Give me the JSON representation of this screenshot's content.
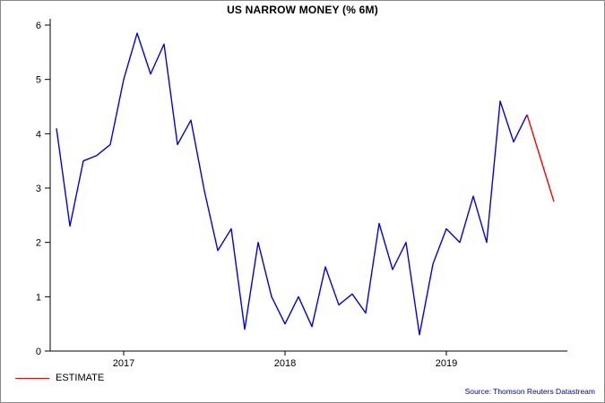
{
  "title": "US NARROW MONEY (% 6M)",
  "legend": {
    "label": "ESTIMATE"
  },
  "source": "Source: Thomson Reuters Datastream",
  "chart_data": {
    "type": "line",
    "title": "US NARROW MONEY (% 6M)",
    "xlabel": "",
    "ylabel": "",
    "ylim": [
      0,
      6
    ],
    "yticks": [
      0,
      1,
      2,
      3,
      4,
      5,
      6
    ],
    "x_tick_labels": [
      "2017",
      "2018",
      "2019"
    ],
    "x_tick_indices": [
      5,
      17,
      29
    ],
    "line_color": "#0000ee",
    "estimate_color": "#ff0000",
    "axis_color": "#000000",
    "grid": false,
    "legend_position": "bottom-left",
    "estimate_start_index": 35,
    "values": [
      4.1,
      2.3,
      3.5,
      3.6,
      3.8,
      5.0,
      5.85,
      5.1,
      5.65,
      3.8,
      4.25,
      2.95,
      1.85,
      2.25,
      0.4,
      2.0,
      1.0,
      0.5,
      1.0,
      0.45,
      1.55,
      0.85,
      1.05,
      0.7,
      2.35,
      1.5,
      2.0,
      0.3,
      1.6,
      2.25,
      2.0,
      2.85,
      2.0,
      4.6,
      3.85,
      4.35,
      3.55,
      2.75
    ],
    "series": [
      {
        "name": "US narrow money (% 6M)",
        "color": "#0000ee"
      },
      {
        "name": "ESTIMATE",
        "color": "#ff0000"
      }
    ]
  }
}
